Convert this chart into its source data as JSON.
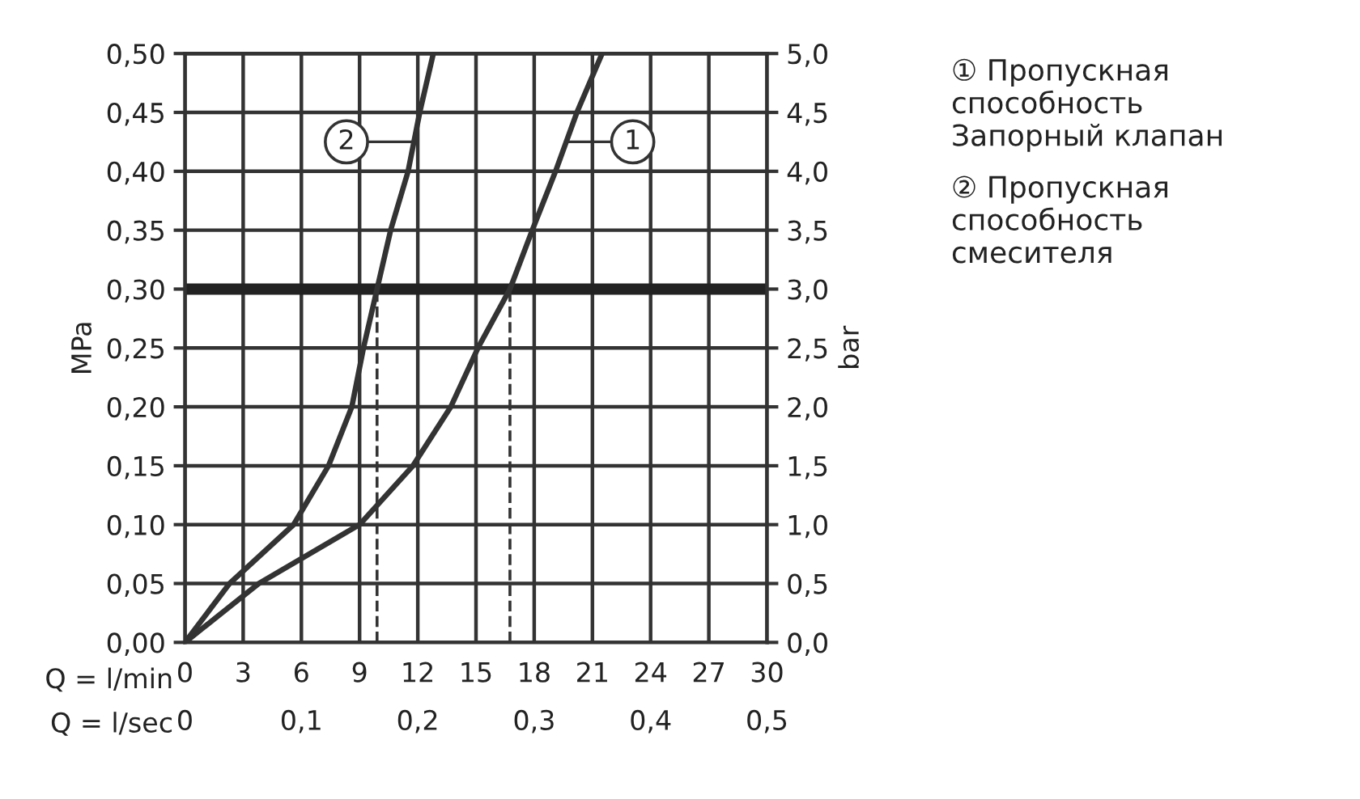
{
  "chart_data": {
    "type": "line",
    "xlabel": "Q = l/min",
    "x2label": "Q = l/sec",
    "ylabel": "MPa",
    "y2label": "bar",
    "xlim": [
      0,
      30
    ],
    "xticks": [
      0,
      3,
      6,
      9,
      12,
      15,
      18,
      21,
      24,
      27,
      30
    ],
    "x2lim": [
      0,
      0.5
    ],
    "x2ticks": [
      0,
      {
        "value": 0.1,
        "label": "0,1"
      },
      {
        "value": 0.2,
        "label": "0,2"
      },
      {
        "value": 0.3,
        "label": "0,3"
      },
      {
        "value": 0.4,
        "label": "0,4"
      },
      {
        "value": 0.5,
        "label": "0,5"
      }
    ],
    "ylim": [
      0,
      0.5
    ],
    "yticks": [
      {
        "value": 0,
        "label": "0,00"
      },
      {
        "value": 0.05,
        "label": "0,05"
      },
      {
        "value": 0.1,
        "label": "0,10"
      },
      {
        "value": 0.15,
        "label": "0,15"
      },
      {
        "value": 0.2,
        "label": "0,20"
      },
      {
        "value": 0.25,
        "label": "0,25"
      },
      {
        "value": 0.3,
        "label": "0,30"
      },
      {
        "value": 0.35,
        "label": "0,35"
      },
      {
        "value": 0.4,
        "label": "0,40"
      },
      {
        "value": 0.45,
        "label": "0,45"
      },
      {
        "value": 0.5,
        "label": "0,50"
      }
    ],
    "y2lim": [
      0,
      5
    ],
    "y2ticks": [
      {
        "value": 0,
        "label": "0,0"
      },
      {
        "value": 0.5,
        "label": "0,5"
      },
      {
        "value": 1,
        "label": "1,0"
      },
      {
        "value": 1.5,
        "label": "1,5"
      },
      {
        "value": 2,
        "label": "2,0"
      },
      {
        "value": 2.5,
        "label": "2,5"
      },
      {
        "value": 3,
        "label": "3,0"
      },
      {
        "value": 3.5,
        "label": "3,5"
      },
      {
        "value": 4,
        "label": "4,0"
      },
      {
        "value": 4.5,
        "label": "4,5"
      },
      {
        "value": 5,
        "label": "5,0"
      }
    ],
    "series": [
      {
        "name": "① Пропускная\nспособность\nЗапорный клапан",
        "color": "#333333",
        "x": [
          0,
          3.8,
          9.0,
          11.75,
          13.7,
          15.1,
          16.75,
          17.9,
          19.1,
          20.2,
          21.5
        ],
        "values": [
          0,
          0.05,
          0.1,
          0.15,
          0.2,
          0.25,
          0.3,
          0.35,
          0.4,
          0.45,
          0.5
        ]
      },
      {
        "name": "② Пропускная\nспособность\nсмесителя",
        "color": "#333333",
        "x": [
          0,
          2.3,
          5.6,
          7.4,
          8.6,
          9.2,
          9.9,
          10.6,
          11.5,
          12.1,
          12.8
        ],
        "values": [
          0,
          0.05,
          0.1,
          0.15,
          0.2,
          0.25,
          0.3,
          0.35,
          0.4,
          0.45,
          0.5
        ]
      }
    ],
    "annotations": [
      {
        "text": "1",
        "x": 19.6,
        "y": 0.425
      },
      {
        "text": "2",
        "x": 11.8,
        "y": 0.425
      }
    ],
    "ref_lines": [
      {
        "axis": "y",
        "value": 0.3,
        "color": "#222222",
        "line_style": "solid"
      },
      {
        "axis": "x",
        "value": 9.9,
        "color": "#333333",
        "line_style": "dashed"
      },
      {
        "axis": "x",
        "value": 16.75,
        "color": "#333333",
        "line_style": "dashed"
      }
    ],
    "grid": true,
    "legend": "right",
    "marker": "none",
    "line_style": "solid"
  }
}
